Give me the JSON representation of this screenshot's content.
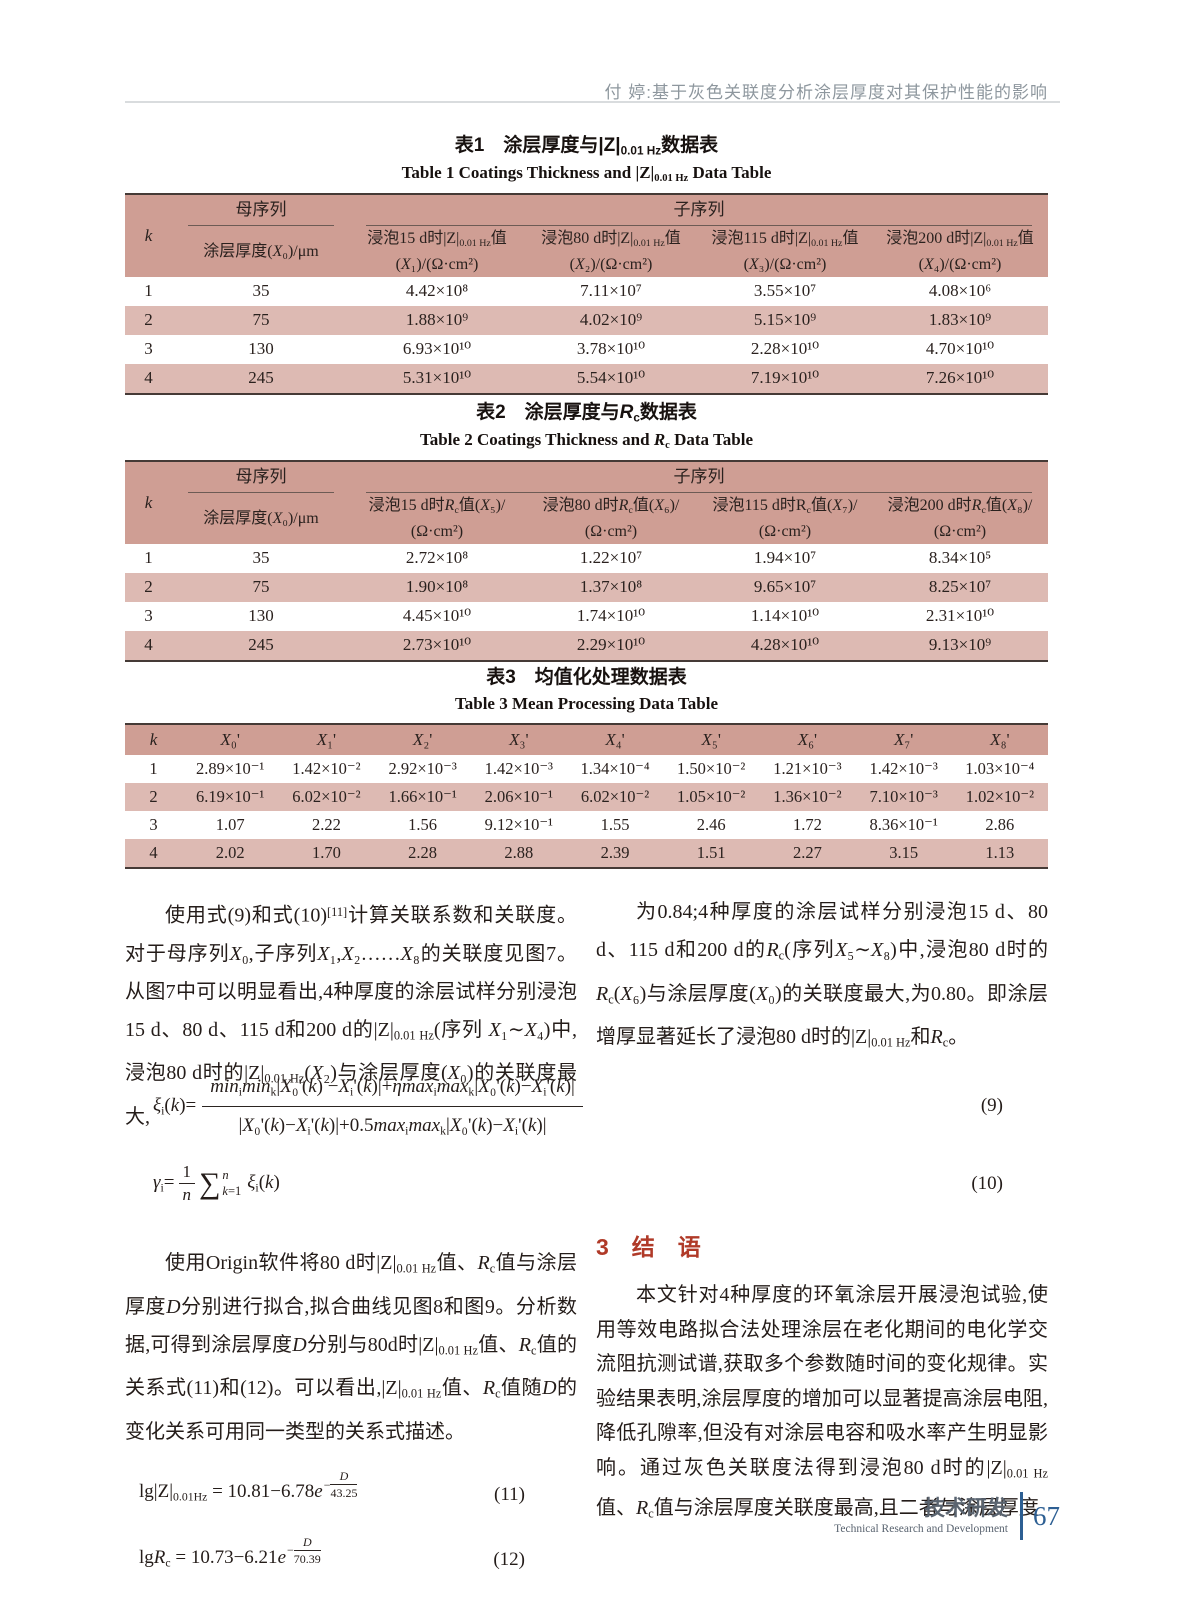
{
  "colors": {
    "table_header": "#cf9e94",
    "row_stripe": "#ddbab3",
    "heading_red": "#b03a28",
    "footer_blue": "#2d5f93",
    "header_gray": "#8e979e"
  },
  "running_header": "付   婷:基于灰色关联度分析涂层厚度对其保护性能的影响",
  "table1": {
    "title_zh": "表1　涂层厚度与|Z|~0.01 Hz~数据表",
    "title_en": "Table 1   Coatings Thickness and |Z|~0.01 Hz~ Data Table",
    "k": "*k*",
    "mother": "母序列",
    "child": "子序列",
    "mother_col": "涂层厚度(*X*₀)/μm",
    "cols": [
      {
        "l1": "浸泡15 d时|Z|~0.01 Hz~值",
        "l2": "(*X*₁)/(Ω·cm²)"
      },
      {
        "l1": "浸泡80 d时|Z|~0.01 Hz~值",
        "l2": "(*X*₂)/(Ω·cm²)"
      },
      {
        "l1": "浸泡115 d时|Z|~0.01 Hz~值",
        "l2": "(*X*₃)/(Ω·cm²)"
      },
      {
        "l1": "浸泡200 d时|Z|~0.01 Hz~值",
        "l2": "(*X*₄)/(Ω·cm²)"
      }
    ],
    "rows": [
      [
        "1",
        "35",
        "4.42×10⁸",
        "7.11×10⁷",
        "3.55×10⁷",
        "4.08×10⁶"
      ],
      [
        "2",
        "75",
        "1.88×10⁹",
        "4.02×10⁹",
        "5.15×10⁹",
        "1.83×10⁹"
      ],
      [
        "3",
        "130",
        "6.93×10¹⁰",
        "3.78×10¹⁰",
        "2.28×10¹⁰",
        "4.70×10¹⁰"
      ],
      [
        "4",
        "245",
        "5.31×10¹⁰",
        "5.54×10¹⁰",
        "7.19×10¹⁰",
        "7.26×10¹⁰"
      ]
    ]
  },
  "table2": {
    "title_zh": "表2　涂层厚度与*R*~c~数据表",
    "title_en": "Table 2   Coatings Thickness and *R*~c~ Data Table",
    "k": "*k*",
    "mother": "母序列",
    "child": "子序列",
    "mother_col": "涂层厚度(*X*₀)/μm",
    "cols": [
      {
        "l1": "浸泡15 d时*R*~c~值(*X*₅)/",
        "l2": "(Ω·cm²)"
      },
      {
        "l1": "浸泡80 d时*R*~c~值(*X*₆)/",
        "l2": "(Ω·cm²)"
      },
      {
        "l1": "浸泡115 d时R~c~值(*X*₇)/",
        "l2": "(Ω·cm²)"
      },
      {
        "l1": "浸泡200 d时*R*~c~值(*X*₈)/",
        "l2": "(Ω·cm²)"
      }
    ],
    "rows": [
      [
        "1",
        "35",
        "2.72×10⁸",
        "1.22×10⁷",
        "1.94×10⁷",
        "8.34×10⁵"
      ],
      [
        "2",
        "75",
        "1.90×10⁸",
        "1.37×10⁸",
        "9.65×10⁷",
        "8.25×10⁷"
      ],
      [
        "3",
        "130",
        "4.45×10¹⁰",
        "1.74×10¹⁰",
        "1.14×10¹⁰",
        "2.31×10¹⁰"
      ],
      [
        "4",
        "245",
        "2.73×10¹⁰",
        "2.29×10¹⁰",
        "4.28×10¹⁰",
        "9.13×10⁹"
      ]
    ]
  },
  "table3": {
    "title_zh": "表3　均值化处理数据表",
    "title_en": "Table 3   Mean Processing Data Table",
    "headers": [
      "*k*",
      "*X*₀'",
      "*X*₁'",
      "*X*₂'",
      "*X*₃'",
      "*X*₄'",
      "*X*₅'",
      "*X*₆'",
      "*X*₇'",
      "*X*₈'"
    ],
    "rows": [
      [
        "1",
        "2.89×10⁻¹",
        "1.42×10⁻²",
        "2.92×10⁻³",
        "1.42×10⁻³",
        "1.34×10⁻⁴",
        "1.50×10⁻²",
        "1.21×10⁻³",
        "1.42×10⁻³",
        "1.03×10⁻⁴"
      ],
      [
        "2",
        "6.19×10⁻¹",
        "6.02×10⁻²",
        "1.66×10⁻¹",
        "2.06×10⁻¹",
        "6.02×10⁻²",
        "1.05×10⁻²",
        "1.36×10⁻²",
        "7.10×10⁻³",
        "1.02×10⁻²"
      ],
      [
        "3",
        "1.07",
        "2.22",
        "1.56",
        "9.12×10⁻¹",
        "1.55",
        "2.46",
        "1.72",
        "8.36×10⁻¹",
        "2.86"
      ],
      [
        "4",
        "2.02",
        "1.70",
        "2.28",
        "2.88",
        "2.39",
        "1.51",
        "2.27",
        "3.15",
        "1.13"
      ]
    ]
  },
  "body": {
    "p1_left": "使用式(9)和式(10)^[11]^计算关联系数和关联度。对于母序列*X*₀,子序列*X*₁,*X*₂……*X*₈的关联度见图7。从图7中可以明显看出,4种厚度的涂层试样分别浸泡15 d、80 d、115 d和200 d的|Z|~0.01 Hz~(序列 *X*₁∼*X*₄)中,浸泡80 d时的|Z|~0.01 Hz~(*X*₂)与涂层厚度(*X*₀)的关联度最大,",
    "p1_right": "为0.84;4种厚度的涂层试样分别浸泡15 d、80 d、115 d和200 d的*R*~c~(序列*X*₅∼*X*₈)中,浸泡80 d时的*R*~c~(*X*₆)与涂层厚度(*X*₀)的关联度最大,为0.80。即涂层增厚显著延长了浸泡80 d时的|Z|~0.01 Hz~和*R*~c~。",
    "p2_left": "使用Origin软件将80 d时|Z|~0.01 Hz~值、*R*~c~值与涂层厚度*D*分别进行拟合,拟合曲线见图8和图9。分析数据,可得到涂层厚度*D*分别与80d时|Z|~0.01 Hz~值、*R*~c~值的关系式(11)和(12)。可以看出,|Z|~0.01 Hz~值、*R*~c~值随*D*的变化关系可用同一类型的关系式描述。",
    "section3_heading": "3　结　语",
    "p_conclusion": "本文针对4种厚度的环氧涂层开展浸泡试验,使用等效电路拟合法处理涂层在老化期间的电化学交流阻抗测试谱,获取多个参数随时间的变化规律。实验结果表明,涂层厚度的增加可以显著提高涂层电阻,降低孔隙率,但没有对涂层电容和吸水率产生明显影响。通过灰色关联度法得到浸泡80 d时的|Z|~0.01 Hz~值、*R*~c~值与涂层厚度关联度最高,且二者与涂层厚度"
  },
  "eq9": {
    "lhs": "*ξ*~i~(*k*)=",
    "num": "*min*~i~*min*~k~|*X*₀'(*k*) −*X*~i~'(*k*)|+*ηmax*~i~*max*~k~|*X*₀'(*k*)−*X*~i~'(*k*)|",
    "den": "|*X*₀'(*k*)−*X*~i~'(*k*)|+0.5*max*~i~*max*~k~|*X*₀'(*k*)−*X*~i~'(*k*)|",
    "no": "(9)"
  },
  "eq10": {
    "lhs": "*γ*~i~=",
    "frac_num": "1",
    "frac_den": "*n*",
    "sigma": "∑",
    "sig_sup": "*n*",
    "sig_sub": "*k*=1",
    "rhs": "*ξ*~i~(*k*)",
    "no": "(10)"
  },
  "eq11": {
    "lhs": "lg|Z|~0.01Hz~ = 10.81−6.78*e*",
    "exp_sign": "−",
    "exp_num": "*D*",
    "exp_den": "43.25",
    "no": "(11)"
  },
  "eq12": {
    "lhs": "lg*R*~c~ = 10.73−6.21*e*",
    "exp_sign": "−",
    "exp_num": "*D*",
    "exp_den": "70.39",
    "no": "(12)"
  },
  "footer": {
    "zh": "技术研发",
    "en": "Technical Research and Development",
    "page": "67"
  }
}
